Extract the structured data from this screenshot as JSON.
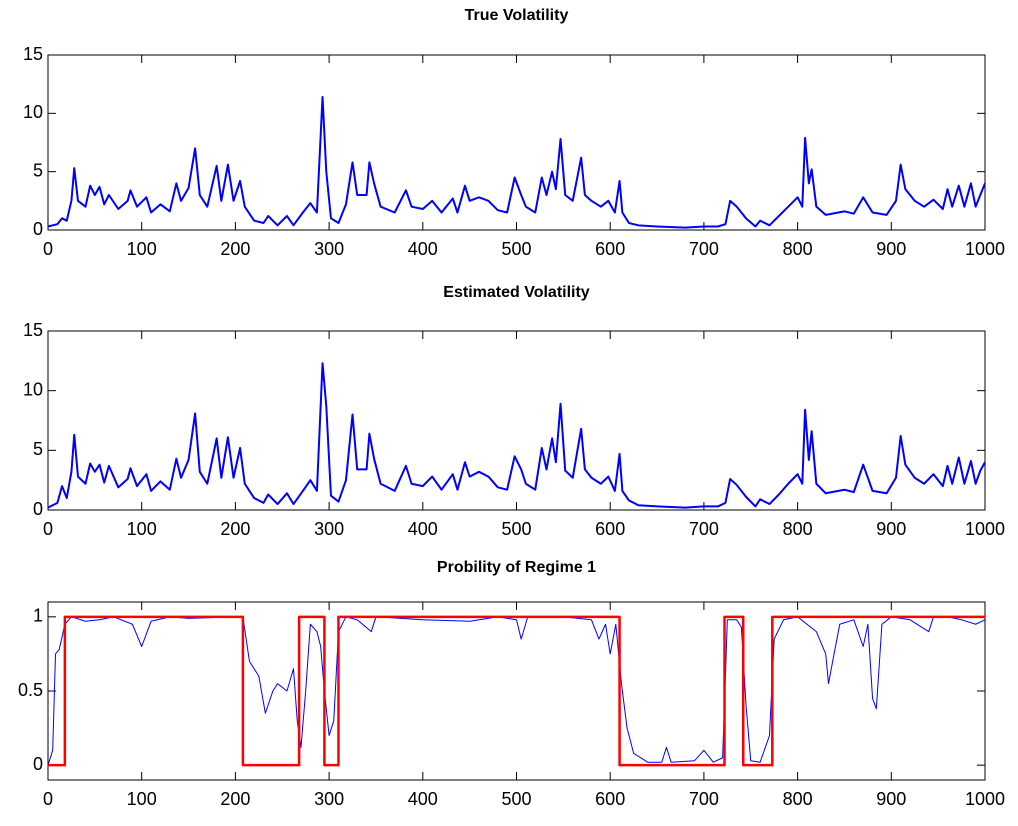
{
  "chart_data": [
    {
      "type": "line",
      "title": "True Volatility",
      "x": [
        0,
        10,
        15,
        20,
        25,
        28,
        32,
        40,
        45,
        50,
        55,
        60,
        65,
        75,
        85,
        88,
        95,
        105,
        110,
        120,
        130,
        137,
        142,
        150,
        157,
        162,
        170,
        180,
        185,
        192,
        198,
        205,
        210,
        220,
        230,
        235,
        245,
        255,
        262,
        272,
        280,
        287,
        293,
        297,
        302,
        310,
        318,
        325,
        330,
        340,
        343,
        348,
        355,
        370,
        382,
        388,
        400,
        410,
        420,
        432,
        437,
        445,
        450,
        460,
        470,
        480,
        490,
        498,
        505,
        510,
        520,
        527,
        532,
        538,
        542,
        547,
        552,
        560,
        569,
        573,
        580,
        590,
        598,
        605,
        610,
        613,
        620,
        630,
        650,
        680,
        700,
        715,
        723,
        728,
        735,
        745,
        755,
        760,
        770,
        780,
        790,
        800,
        805,
        808,
        812,
        815,
        820,
        830,
        850,
        860,
        870,
        880,
        895,
        905,
        910,
        915,
        925,
        935,
        945,
        955,
        960,
        965,
        972,
        978,
        985,
        990,
        995,
        1000
      ],
      "series": [
        {
          "color": "#0000ff",
          "linewidth": 2,
          "values": [
            0.3,
            0.5,
            1,
            0.8,
            2.5,
            5.3,
            2.5,
            2,
            3.8,
            3,
            3.7,
            2.2,
            3,
            1.8,
            2.5,
            3.4,
            2,
            2.8,
            1.5,
            2.2,
            1.6,
            4,
            2.5,
            3.6,
            7,
            3,
            2,
            5.5,
            2.5,
            5.6,
            2.5,
            4.2,
            2,
            0.8,
            0.6,
            1.2,
            0.4,
            1.2,
            0.4,
            1.5,
            2.3,
            1.5,
            11.4,
            5,
            1,
            0.6,
            2.2,
            5.8,
            3,
            3,
            5.8,
            4,
            2,
            1.5,
            3.4,
            2,
            1.8,
            2.5,
            1.5,
            2.7,
            1.5,
            3.8,
            2.5,
            2.8,
            2.5,
            1.7,
            1.5,
            4.5,
            3,
            2,
            1.5,
            4.5,
            3,
            5,
            3.5,
            7.8,
            3,
            2.5,
            6.2,
            3,
            2.5,
            2,
            2.5,
            1.5,
            4.2,
            1.5,
            0.6,
            0.4,
            0.3,
            0.2,
            0.3,
            0.3,
            0.5,
            2.5,
            2,
            1,
            0.3,
            0.8,
            0.4,
            1.2,
            2,
            2.8,
            2,
            7.9,
            4,
            5.2,
            2,
            1.3,
            1.6,
            1.4,
            2.8,
            1.5,
            1.3,
            2.5,
            5.6,
            3.5,
            2.5,
            2,
            2.6,
            1.8,
            3.5,
            2,
            3.8,
            2,
            4,
            2,
            3,
            4
          ]
        }
      ],
      "xlim": [
        0,
        1000
      ],
      "xticks": [
        0,
        100,
        200,
        300,
        400,
        500,
        600,
        700,
        800,
        900,
        1000
      ],
      "ylim": [
        0,
        15
      ],
      "yticks": [
        0,
        5,
        10,
        15
      ]
    },
    {
      "type": "line",
      "title": "Estimated Volatility",
      "x": [
        0,
        10,
        15,
        20,
        25,
        28,
        32,
        40,
        45,
        50,
        55,
        60,
        65,
        75,
        85,
        88,
        95,
        105,
        110,
        120,
        130,
        137,
        142,
        150,
        157,
        162,
        170,
        180,
        185,
        192,
        198,
        205,
        210,
        220,
        230,
        235,
        245,
        255,
        262,
        272,
        280,
        287,
        293,
        297,
        302,
        310,
        318,
        325,
        330,
        340,
        343,
        348,
        355,
        370,
        382,
        388,
        400,
        410,
        420,
        432,
        437,
        445,
        450,
        460,
        470,
        480,
        490,
        498,
        505,
        510,
        520,
        527,
        532,
        538,
        542,
        547,
        552,
        560,
        569,
        573,
        580,
        590,
        598,
        605,
        610,
        613,
        620,
        630,
        650,
        680,
        700,
        715,
        723,
        728,
        735,
        745,
        755,
        760,
        770,
        780,
        790,
        800,
        805,
        808,
        812,
        815,
        820,
        830,
        850,
        860,
        870,
        880,
        895,
        905,
        910,
        915,
        925,
        935,
        945,
        955,
        960,
        965,
        972,
        978,
        985,
        990,
        995,
        1000
      ],
      "series": [
        {
          "color": "#0000ff",
          "linewidth": 2,
          "values": [
            0.2,
            0.6,
            2,
            1,
            3.2,
            6.3,
            2.8,
            2.2,
            3.9,
            3.2,
            3.8,
            2.3,
            3.7,
            1.9,
            2.6,
            3.5,
            2,
            3,
            1.6,
            2.4,
            1.7,
            4.3,
            2.7,
            4.2,
            8.1,
            3.2,
            2.2,
            6,
            2.7,
            6.1,
            2.7,
            5.2,
            2.2,
            1,
            0.6,
            1.3,
            0.5,
            1.4,
            0.5,
            1.6,
            2.5,
            1.6,
            12.3,
            8.7,
            1.2,
            0.7,
            2.5,
            8,
            3.4,
            3.4,
            6.4,
            4.3,
            2.2,
            1.6,
            3.7,
            2.2,
            2,
            2.8,
            1.7,
            3,
            1.7,
            4,
            2.8,
            3.2,
            2.8,
            1.9,
            1.7,
            4.5,
            3.4,
            2.2,
            1.7,
            5.2,
            3.4,
            6,
            4,
            8.9,
            3.3,
            2.7,
            6.8,
            3.4,
            2.7,
            2.2,
            2.8,
            1.6,
            4.7,
            1.6,
            0.8,
            0.4,
            0.3,
            0.2,
            0.3,
            0.3,
            0.6,
            2.6,
            2.1,
            1.1,
            0.3,
            0.9,
            0.5,
            1.3,
            2.2,
            3,
            2.2,
            8.4,
            4.2,
            6.6,
            2.2,
            1.4,
            1.7,
            1.5,
            3.8,
            1.6,
            1.4,
            2.7,
            6.2,
            3.8,
            2.7,
            2.2,
            3,
            2,
            3.7,
            2.2,
            4.4,
            2.2,
            4.1,
            2.2,
            3.3,
            4
          ]
        }
      ],
      "xlim": [
        0,
        1000
      ],
      "xticks": [
        0,
        100,
        200,
        300,
        400,
        500,
        600,
        700,
        800,
        900,
        1000
      ],
      "ylim": [
        0,
        15
      ],
      "yticks": [
        0,
        5,
        10,
        15
      ]
    },
    {
      "type": "line",
      "title": "Probility of Regime 1",
      "series": [
        {
          "color": "#0000ff",
          "linewidth": 1,
          "x": [
            0,
            5,
            8,
            12,
            18,
            25,
            40,
            55,
            70,
            90,
            100,
            110,
            130,
            150,
            200,
            208,
            215,
            225,
            232,
            240,
            245,
            255,
            262,
            266,
            270,
            275,
            280,
            287,
            291,
            295,
            300,
            305,
            310,
            318,
            330,
            345,
            350,
            400,
            450,
            480,
            500,
            505,
            512,
            550,
            580,
            588,
            595,
            600,
            606,
            612,
            618,
            625,
            640,
            655,
            660,
            665,
            690,
            700,
            710,
            720,
            725,
            735,
            740,
            745,
            750,
            760,
            770,
            775,
            785,
            800,
            820,
            830,
            833,
            838,
            845,
            860,
            870,
            875,
            880,
            884,
            890,
            900,
            920,
            940,
            945,
            960,
            975,
            990,
            1000
          ],
          "values": [
            0,
            0.1,
            0.75,
            0.78,
            0.95,
            1,
            0.97,
            0.98,
            1,
            0.95,
            0.8,
            0.97,
            1,
            0.99,
            1,
            1,
            0.7,
            0.6,
            0.35,
            0.5,
            0.55,
            0.5,
            0.65,
            0.3,
            0.12,
            0.5,
            0.95,
            0.9,
            0.8,
            0.5,
            0.2,
            0.3,
            0.9,
            1,
            0.98,
            0.9,
            1,
            0.98,
            0.97,
            1,
            0.98,
            0.85,
            1,
            1,
            0.98,
            0.85,
            0.95,
            0.75,
            0.95,
            0.55,
            0.25,
            0.08,
            0.02,
            0.02,
            0.12,
            0.02,
            0.03,
            0.1,
            0.02,
            0.05,
            0.98,
            0.98,
            0.93,
            0.4,
            0.03,
            0.02,
            0.2,
            0.85,
            0.98,
            1,
            0.9,
            0.75,
            0.55,
            0.72,
            0.95,
            0.98,
            0.8,
            0.95,
            0.45,
            0.38,
            0.95,
            1,
            0.98,
            0.9,
            1,
            1,
            0.98,
            0.95,
            0.98
          ]
        },
        {
          "color": "#ff0000",
          "linewidth": 2.5,
          "x": [
            0,
            18,
            18,
            208,
            208,
            268,
            268,
            295,
            295,
            310,
            310,
            610,
            610,
            722,
            722,
            742,
            742,
            773,
            773,
            1000
          ],
          "values": [
            0,
            0,
            1,
            1,
            0,
            0,
            1,
            1,
            0,
            0,
            1,
            1,
            0,
            0,
            1,
            1,
            0,
            0,
            1,
            1
          ]
        }
      ],
      "xlim": [
        0,
        1000
      ],
      "xticks": [
        0,
        100,
        200,
        300,
        400,
        500,
        600,
        700,
        800,
        900,
        1000
      ],
      "ylim": [
        -0.1,
        1.1
      ],
      "yticks": [
        0,
        0.5,
        1
      ]
    }
  ]
}
